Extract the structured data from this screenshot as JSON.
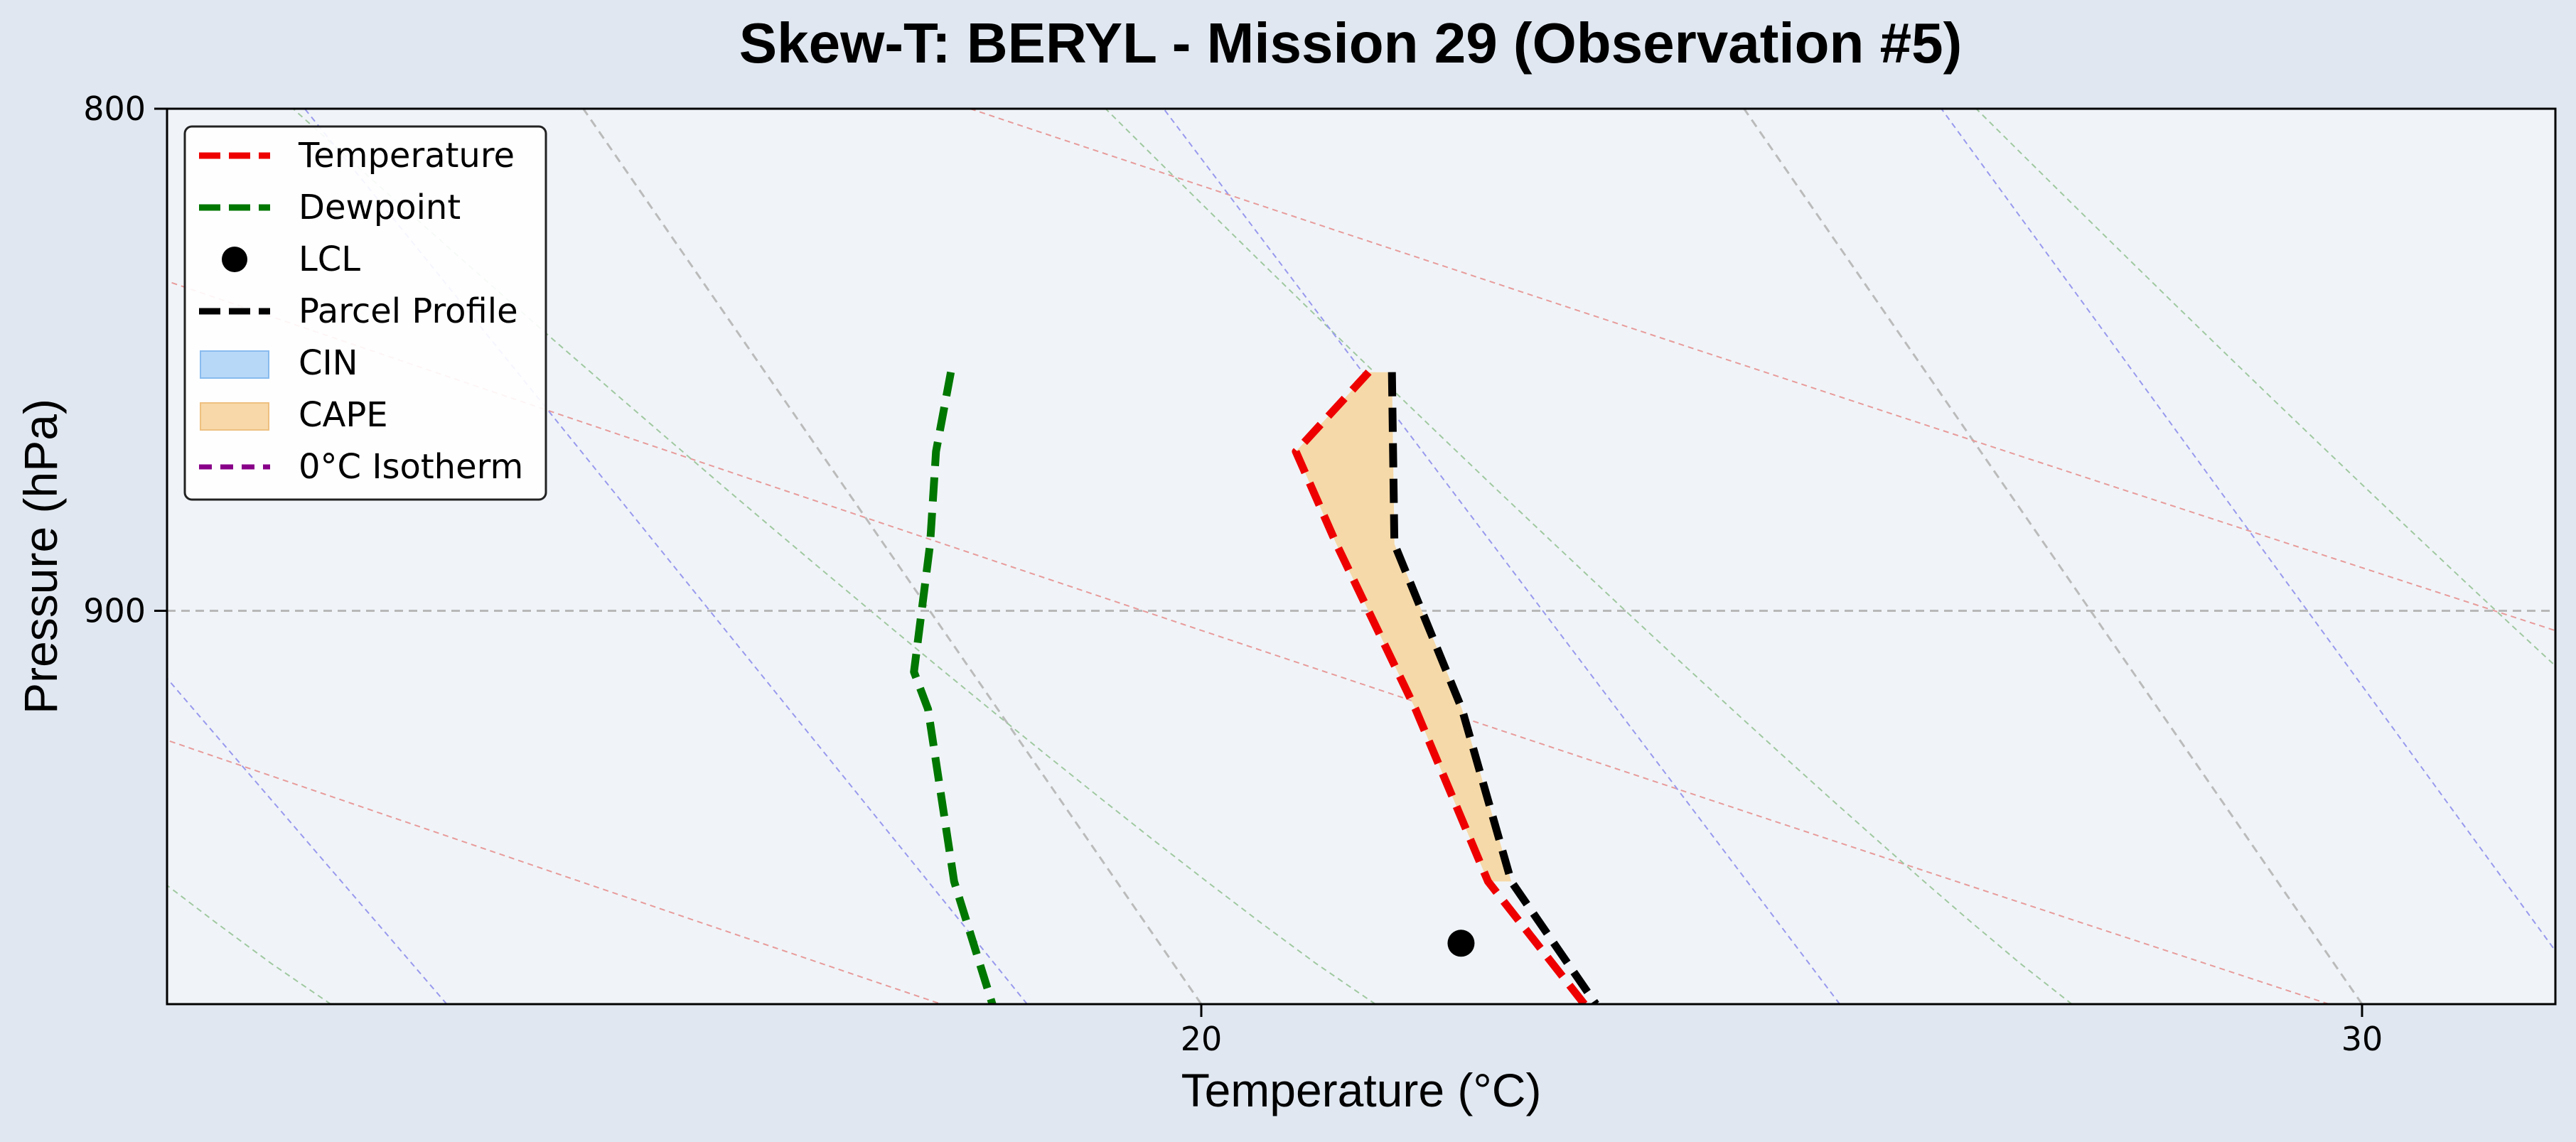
{
  "chart_data": {
    "type": "line",
    "title": "Skew-T: BERYL - Mission 29 (Observation #5)",
    "xlabel": "Temperature (°C)",
    "ylabel": "Pressure (hPa)",
    "x_ticks": [
      20,
      30
    ],
    "y_ticks": [
      800,
      900
    ],
    "pressure_range": [
      800,
      987
    ],
    "temperature_range_at_top_left": [
      11.1,
      31.6
    ],
    "x_scale": "skewed temperature",
    "y_scale": "log pressure (inverted)",
    "grid": "dashed horizontal line at 900 hPa",
    "legend": {
      "placement": "top-left",
      "entries": [
        "Temperature",
        "Dewpoint",
        "LCL",
        "Parcel Profile",
        "CIN",
        "CAPE",
        "0°C Isotherm"
      ]
    },
    "series": [
      {
        "name": "Temperature",
        "color": "#ee0000",
        "style": "dashed",
        "points": [
          {
            "p": 851,
            "t": 25.2
          },
          {
            "p": 867,
            "t": 24.1
          },
          {
            "p": 886,
            "t": 23.9
          },
          {
            "p": 921,
            "t": 23.6
          },
          {
            "p": 959,
            "t": 23.2
          },
          {
            "p": 987,
            "t": 23.3
          }
        ]
      },
      {
        "name": "Dewpoint",
        "color": "#007700",
        "style": "dashed",
        "points": [
          {
            "p": 851,
            "t": 21.6
          },
          {
            "p": 867,
            "t": 21.0
          },
          {
            "p": 886,
            "t": 20.4
          },
          {
            "p": 913,
            "t": 19.5
          },
          {
            "p": 921,
            "t": 19.4
          },
          {
            "p": 959,
            "t": 18.6
          },
          {
            "p": 987,
            "t": 18.2
          }
        ]
      },
      {
        "name": "Parcel Profile",
        "color": "#000000",
        "style": "dashed",
        "points": [
          {
            "p": 851,
            "t": 25.4
          },
          {
            "p": 886,
            "t": 24.4
          },
          {
            "p": 921,
            "t": 24.0
          },
          {
            "p": 959,
            "t": 23.4
          },
          {
            "p": 987,
            "t": 23.4
          }
        ]
      }
    ],
    "lcl": {
      "p": 973,
      "t": 22.6
    },
    "cape_region": {
      "p_range": [
        851,
        959
      ],
      "color": "#f5d9a8"
    },
    "cin_region": null,
    "background_lines": {
      "dry_adiabats_color": "#e89b9b",
      "moist_adiabats_color": "#a0c8a0",
      "mixing_ratio_color": "#9999ee",
      "isotherms_color": "#bbbbbb"
    }
  }
}
